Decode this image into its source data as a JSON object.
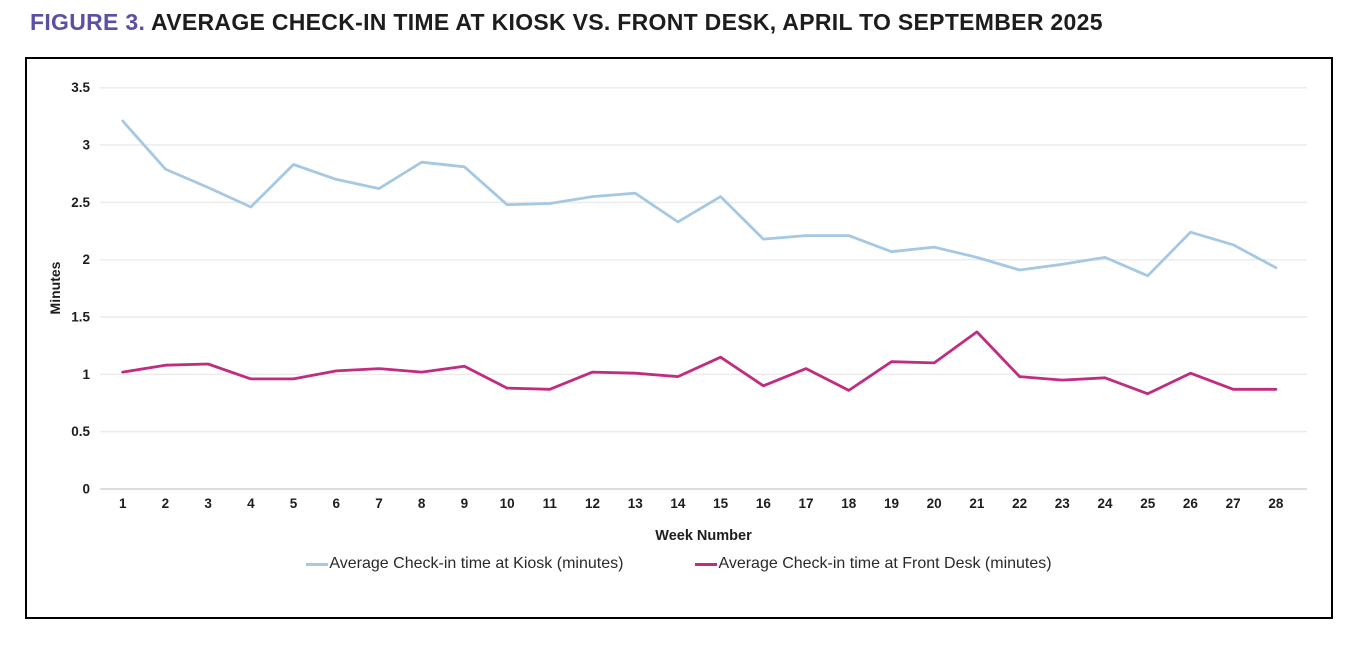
{
  "title": {
    "prefix": "FIGURE 3.",
    "text": "AVERAGE CHECK-IN TIME AT KIOSK VS. FRONT DESK, APRIL TO SEPTEMBER 2025"
  },
  "colors": {
    "title_prefix": "#5951a2",
    "title_text": "#1d1d1f",
    "grid": "#ececec",
    "zero_line": "#d2d2d2",
    "panel_border": "#000000",
    "axis_text": "#1d1d1f"
  },
  "chart_data": {
    "type": "line",
    "title": "Average check-in time at kiosk vs. front desk, April to September 2025",
    "xlabel": "Week Number",
    "ylabel": "Minutes",
    "x": [
      1,
      2,
      3,
      4,
      5,
      6,
      7,
      8,
      9,
      10,
      11,
      12,
      13,
      14,
      15,
      16,
      17,
      18,
      19,
      20,
      21,
      22,
      23,
      24,
      25,
      26,
      27,
      28
    ],
    "ylim": [
      0,
      3.5
    ],
    "yticks": [
      0,
      0.5,
      1,
      1.5,
      2,
      2.5,
      3,
      3.5
    ],
    "grid": true,
    "legend_position": "bottom",
    "series": [
      {
        "name": "Average Check-in time at Kiosk (minutes)",
        "color": "#a5c8e3",
        "values": [
          3.21,
          2.79,
          2.63,
          2.46,
          2.83,
          2.7,
          2.62,
          2.85,
          2.81,
          2.48,
          2.49,
          2.55,
          2.58,
          2.33,
          2.55,
          2.18,
          2.21,
          2.21,
          2.07,
          2.11,
          2.02,
          1.91,
          1.96,
          2.02,
          1.86,
          2.24,
          2.13,
          1.93
        ]
      },
      {
        "name": "Average Check-in time at Front Desk (minutes)",
        "color": "#bf2c80",
        "values": [
          1.02,
          1.08,
          1.09,
          0.96,
          0.96,
          1.03,
          1.05,
          1.02,
          1.07,
          0.88,
          0.87,
          1.02,
          1.01,
          0.98,
          1.15,
          0.9,
          1.05,
          0.86,
          1.11,
          1.1,
          1.37,
          0.98,
          0.95,
          0.97,
          0.83,
          1.01,
          0.87,
          0.87
        ]
      }
    ]
  }
}
